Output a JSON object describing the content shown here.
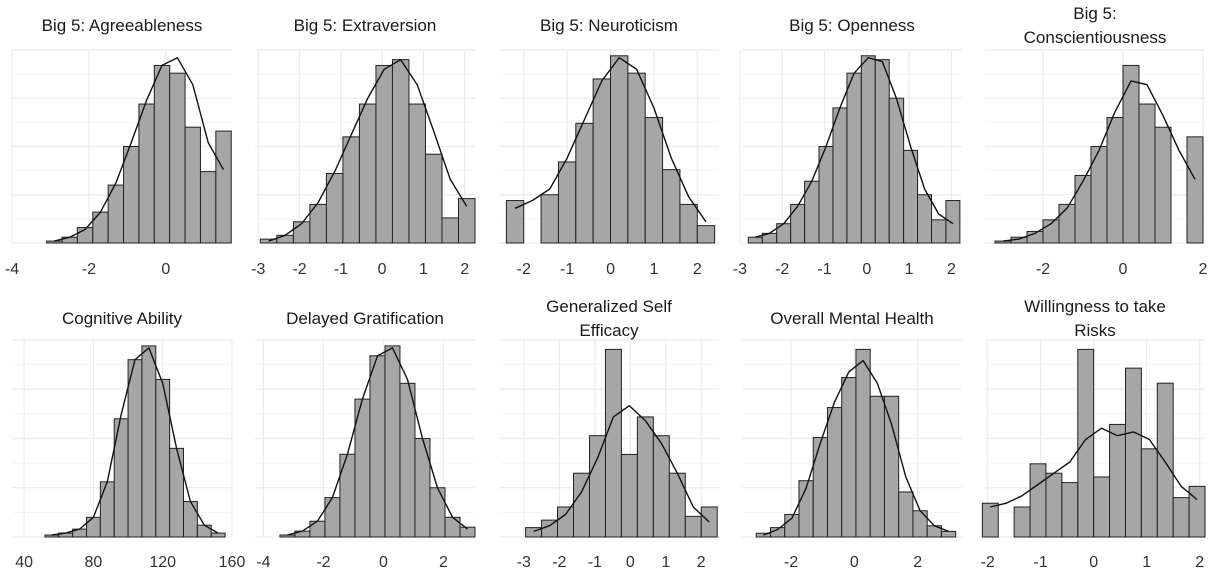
{
  "chart_data": [
    {
      "type": "histogram",
      "title": "Big 5: Agreeableness",
      "bins": [
        -3.1,
        -2.7,
        -2.3,
        -1.9,
        -1.5,
        -1.1,
        -0.7,
        -0.3,
        0.1,
        0.5,
        0.9,
        1.3,
        1.7
      ],
      "counts": [
        1,
        3,
        8,
        16,
        30,
        50,
        72,
        92,
        88,
        60,
        37,
        58
      ],
      "density": [
        1,
        3,
        7,
        16,
        31,
        52,
        74,
        92,
        96,
        82,
        52,
        38
      ],
      "xlim": [
        -4,
        1.72
      ],
      "xticks": [
        -4,
        -2,
        0
      ],
      "ylim": [
        0,
        100
      ],
      "color": "#a6a6a6",
      "grid": true
    },
    {
      "type": "histogram",
      "title": "Big 5: Extraversion",
      "bins": [
        -2.95,
        -2.55,
        -2.15,
        -1.75,
        -1.35,
        -0.95,
        -0.55,
        -0.15,
        0.25,
        0.65,
        1.05,
        1.45,
        1.85,
        2.25
      ],
      "counts": [
        2,
        4,
        11,
        20,
        36,
        55,
        72,
        92,
        95,
        72,
        46,
        13,
        23
      ],
      "density": [
        1,
        4,
        10,
        21,
        37,
        56,
        75,
        90,
        95,
        82,
        58,
        33,
        19
      ],
      "xlim": [
        -3.08,
        2.25
      ],
      "xticks": [
        -3,
        -2,
        -1,
        0,
        1,
        2
      ],
      "ylim": [
        0,
        100
      ],
      "color": "#a6a6a6",
      "grid": true
    },
    {
      "type": "histogram",
      "title": "Big 5: Neuroticism",
      "bins": [
        -2.4,
        -2.0,
        -1.6,
        -1.2,
        -0.8,
        -0.4,
        0,
        0.4,
        0.8,
        1.2,
        1.6,
        2.0,
        2.4
      ],
      "counts": [
        22,
        0,
        25,
        42,
        62,
        85,
        97,
        88,
        65,
        38,
        20,
        9
      ],
      "density": [
        18,
        22,
        28,
        44,
        64,
        84,
        96,
        90,
        70,
        44,
        24,
        11
      ],
      "xlim": [
        -2.57,
        2.5
      ],
      "xticks": [
        -2,
        -1,
        0,
        1,
        2
      ],
      "ylim": [
        0,
        100
      ],
      "color": "#a6a6a6",
      "grid": true
    },
    {
      "type": "histogram",
      "title": "Big 5: Openness",
      "bins": [
        -2.8,
        -2.47,
        -2.13,
        -1.8,
        -1.47,
        -1.13,
        -0.8,
        -0.47,
        -0.13,
        0.2,
        0.53,
        0.87,
        1.2,
        1.53,
        1.87,
        2.2
      ],
      "counts": [
        3,
        5,
        10,
        20,
        32,
        50,
        70,
        88,
        97,
        95,
        75,
        48,
        25,
        12,
        22
      ],
      "density": [
        3,
        5,
        10,
        19,
        32,
        50,
        70,
        88,
        96,
        94,
        75,
        50,
        28,
        15,
        10
      ],
      "xlim": [
        -2.95,
        2.25
      ],
      "xticks": [
        -3,
        -2,
        -1,
        0,
        1,
        2
      ],
      "ylim": [
        0,
        100
      ],
      "color": "#a6a6a6",
      "grid": true
    },
    {
      "type": "histogram",
      "title": "Big 5: Conscientiousness",
      "bins": [
        -3.2,
        -2.8,
        -2.4,
        -2.0,
        -1.6,
        -1.2,
        -0.8,
        -0.4,
        0,
        0.4,
        0.8,
        1.2,
        1.6,
        2.0
      ],
      "counts": [
        1,
        3,
        6,
        12,
        20,
        35,
        50,
        65,
        92,
        72,
        60,
        0,
        55
      ],
      "density": [
        1,
        2,
        5,
        10,
        18,
        32,
        48,
        68,
        84,
        82,
        66,
        48,
        33
      ],
      "xlim": [
        -3.45,
        2.05
      ],
      "xticks": [
        -2,
        0,
        2
      ],
      "ylim": [
        0,
        100
      ],
      "color": "#a6a6a6",
      "grid": true
    },
    {
      "type": "histogram",
      "title": "Cognitive Ability",
      "bins": [
        52,
        60,
        68,
        76,
        84,
        92,
        100,
        108,
        116,
        124,
        132,
        140,
        148,
        156
      ],
      "counts": [
        1,
        2,
        4,
        10,
        28,
        60,
        90,
        97,
        80,
        45,
        18,
        6,
        2
      ],
      "density": [
        1,
        2,
        4,
        10,
        28,
        62,
        90,
        96,
        78,
        45,
        18,
        6,
        2
      ],
      "xlim": [
        33,
        160
      ],
      "xticks": [
        40,
        80,
        120,
        160
      ],
      "ylim": [
        0,
        100
      ],
      "color": "#a6a6a6",
      "grid": true
    },
    {
      "type": "histogram",
      "title": "Delayed Gratification",
      "bins": [
        -3.45,
        -2.95,
        -2.45,
        -1.95,
        -1.45,
        -0.95,
        -0.45,
        0.05,
        0.55,
        1.05,
        1.55,
        2.05,
        2.55,
        3.05
      ],
      "counts": [
        1,
        3,
        8,
        20,
        42,
        70,
        92,
        97,
        78,
        50,
        25,
        10,
        5
      ],
      "density": [
        1,
        3,
        8,
        20,
        42,
        70,
        92,
        96,
        80,
        50,
        25,
        10,
        4
      ],
      "xlim": [
        -4.28,
        3.05
      ],
      "xticks": [
        -4,
        -2,
        0,
        2
      ],
      "ylim": [
        0,
        100
      ],
      "color": "#a6a6a6",
      "grid": true
    },
    {
      "type": "histogram",
      "title": "Generalized Self Efficacy",
      "bins": [
        -2.95,
        -2.5,
        -2.05,
        -1.6,
        -1.15,
        -0.7,
        -0.25,
        0.2,
        0.65,
        1.1,
        1.55,
        2.0,
        2.45
      ],
      "counts": [
        5,
        9,
        16,
        34,
        54,
        100,
        44,
        64,
        54,
        34,
        11,
        16
      ],
      "density": [
        3,
        6,
        12,
        24,
        42,
        64,
        70,
        62,
        50,
        34,
        16,
        8
      ],
      "xlim": [
        -3.7,
        2.5
      ],
      "xticks": [
        -3,
        -2,
        -1,
        0,
        1,
        2
      ],
      "ylim": [
        0,
        105
      ],
      "color": "#a6a6a6",
      "grid": true
    },
    {
      "type": "histogram",
      "title": "Overall Mental Health",
      "bins": [
        -3.1,
        -2.65,
        -2.2,
        -1.75,
        -1.3,
        -0.85,
        -0.4,
        0.05,
        0.5,
        0.95,
        1.4,
        1.85,
        2.3,
        2.75,
        3.2
      ],
      "counts": [
        2,
        5,
        12,
        30,
        53,
        69,
        85,
        100,
        75,
        75,
        24,
        14,
        6,
        3
      ],
      "density": [
        1,
        4,
        10,
        26,
        50,
        72,
        88,
        94,
        82,
        60,
        32,
        14,
        6,
        3
      ],
      "xlim": [
        -3.55,
        3.4
      ],
      "xticks": [
        -2,
        0,
        2
      ],
      "ylim": [
        0,
        105
      ],
      "color": "#a6a6a6",
      "grid": true
    },
    {
      "type": "histogram",
      "title": "Willingness to take Risks",
      "bins": [
        -2.1,
        -1.8,
        -1.5,
        -1.2,
        -0.9,
        -0.6,
        -0.3,
        0,
        0.3,
        0.6,
        0.9,
        1.2,
        1.5,
        1.8,
        2.1
      ],
      "counts": [
        18,
        0,
        16,
        39,
        34,
        29,
        100,
        32,
        60,
        90,
        47,
        82,
        21,
        27
      ],
      "density": [
        16,
        18,
        22,
        28,
        34,
        40,
        52,
        58,
        54,
        56,
        52,
        40,
        27,
        20
      ],
      "xlim": [
        -2.05,
        2.1
      ],
      "xticks": [
        -2,
        -1,
        0,
        1,
        2
      ],
      "ylim": [
        0,
        105
      ],
      "color": "#a6a6a6",
      "grid": true
    }
  ]
}
